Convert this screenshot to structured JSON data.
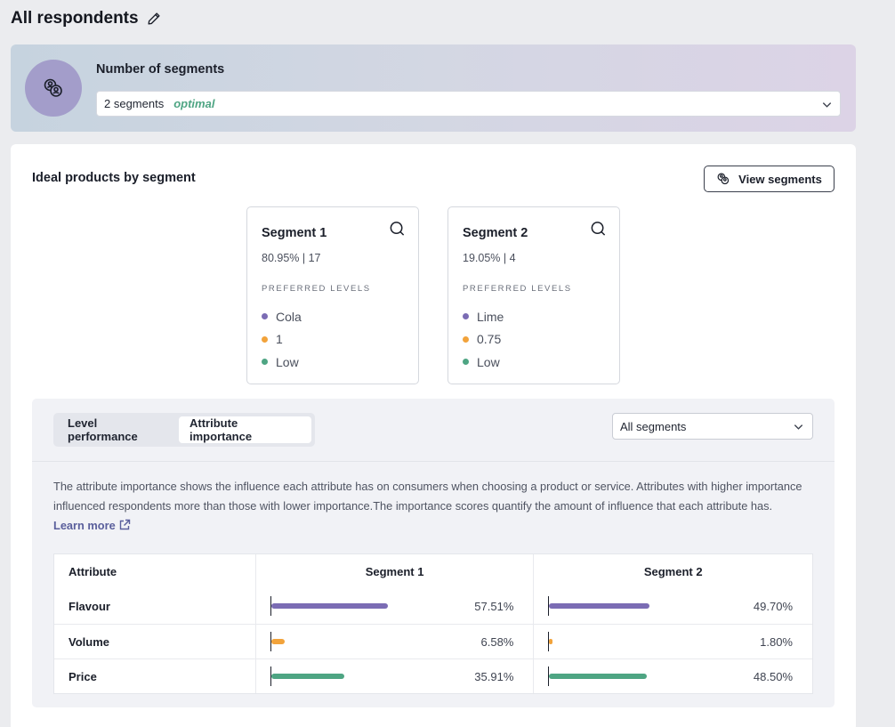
{
  "header": {
    "title": "All respondents"
  },
  "segments_config": {
    "title": "Number of segments",
    "selected_value": "2 segments",
    "selected_badge": "optimal"
  },
  "ideal_products": {
    "title": "Ideal products by segment",
    "view_button_label": "View segments",
    "preferred_levels_label": "PREFERRED LEVELS",
    "segments": [
      {
        "title": "Segment 1",
        "stats": "80.95% | 17",
        "levels": [
          {
            "label": "Cola",
            "color": "#7b6cb4"
          },
          {
            "label": "1",
            "color": "#f2a33b"
          },
          {
            "label": "Low",
            "color": "#4ea583"
          }
        ]
      },
      {
        "title": "Segment 2",
        "stats": "19.05% | 4",
        "levels": [
          {
            "label": "Lime",
            "color": "#7b6cb4"
          },
          {
            "label": "0.75",
            "color": "#f2a33b"
          },
          {
            "label": "Low",
            "color": "#4ea583"
          }
        ]
      }
    ]
  },
  "analysis": {
    "tabs": [
      {
        "label": "Level performance",
        "active": false
      },
      {
        "label": "Attribute importance",
        "active": true
      }
    ],
    "filter_value": "All segments",
    "description": "The attribute importance shows the influence each attribute has on consumers when choosing a product or service. Attributes with higher importance influenced respondents more than those with lower importance.The importance scores quantify the amount of influence that each attribute has.",
    "learn_more": "Learn more",
    "table": {
      "columns": [
        "Attribute",
        "Segment 1",
        "Segment 2"
      ],
      "rows": [
        {
          "attribute": "Flavour",
          "color": "#7b6cb4",
          "values": [
            "57.51%",
            "49.70%"
          ],
          "fractions": [
            0.5751,
            0.497
          ]
        },
        {
          "attribute": "Volume",
          "color": "#f2a33b",
          "values": [
            "6.58%",
            "1.80%"
          ],
          "fractions": [
            0.0658,
            0.018
          ]
        },
        {
          "attribute": "Price",
          "color": "#4ea583",
          "values": [
            "35.91%",
            "48.50%"
          ],
          "fractions": [
            0.3591,
            0.485
          ]
        }
      ]
    }
  }
}
